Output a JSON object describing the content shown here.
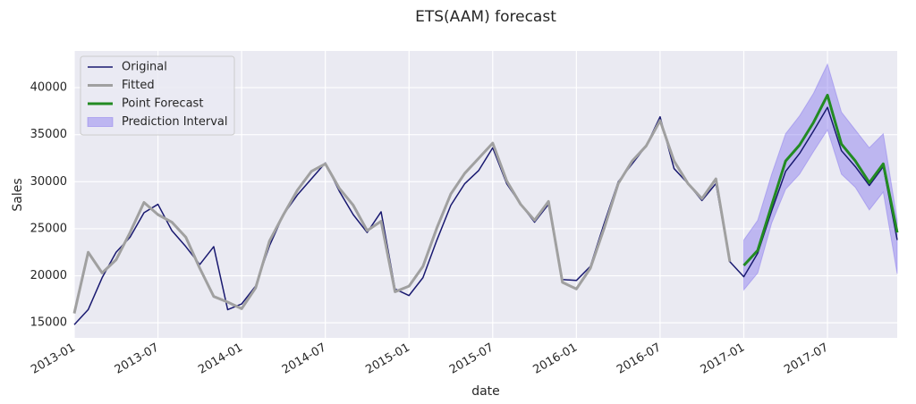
{
  "chart_data": {
    "type": "line",
    "title": "ETS(AAM) forecast",
    "x_label": "date",
    "y_label": "Sales",
    "x": [
      "2013-01",
      "2013-02",
      "2013-03",
      "2013-04",
      "2013-05",
      "2013-06",
      "2013-07",
      "2013-08",
      "2013-09",
      "2013-10",
      "2013-11",
      "2013-12",
      "2014-01",
      "2014-02",
      "2014-03",
      "2014-04",
      "2014-05",
      "2014-06",
      "2014-07",
      "2014-08",
      "2014-09",
      "2014-10",
      "2014-11",
      "2014-12",
      "2015-01",
      "2015-02",
      "2015-03",
      "2015-04",
      "2015-05",
      "2015-06",
      "2015-07",
      "2015-08",
      "2015-09",
      "2015-10",
      "2015-11",
      "2015-12",
      "2016-01",
      "2016-02",
      "2016-03",
      "2016-04",
      "2016-05",
      "2016-06",
      "2016-07",
      "2016-08",
      "2016-09",
      "2016-10",
      "2016-11",
      "2016-12",
      "2017-01",
      "2017-02",
      "2017-03",
      "2017-04",
      "2017-05",
      "2017-06",
      "2017-07",
      "2017-08",
      "2017-09",
      "2017-10",
      "2017-11",
      "2017-12"
    ],
    "xticks": [
      "2013-01",
      "2013-07",
      "2014-01",
      "2014-07",
      "2015-01",
      "2015-07",
      "2016-01",
      "2016-07",
      "2017-01",
      "2017-07"
    ],
    "ylim": [
      13400,
      43900
    ],
    "yticks": [
      15000,
      20000,
      25000,
      30000,
      35000,
      40000
    ],
    "grid": true,
    "legend": "upper left",
    "interval": {
      "name": "Prediction Interval",
      "color": "#7b68ee",
      "lower": [
        null,
        null,
        null,
        null,
        null,
        null,
        null,
        null,
        null,
        null,
        null,
        null,
        null,
        null,
        null,
        null,
        null,
        null,
        null,
        null,
        null,
        null,
        null,
        null,
        null,
        null,
        null,
        null,
        null,
        null,
        null,
        null,
        null,
        null,
        null,
        null,
        null,
        null,
        null,
        null,
        null,
        null,
        null,
        null,
        null,
        null,
        null,
        null,
        18500,
        20300,
        25600,
        29200,
        30800,
        33200,
        35500,
        30800,
        29400,
        27000,
        28900,
        20200
      ],
      "upper": [
        null,
        null,
        null,
        null,
        null,
        null,
        null,
        null,
        null,
        null,
        null,
        null,
        null,
        null,
        null,
        null,
        null,
        null,
        null,
        null,
        null,
        null,
        null,
        null,
        null,
        null,
        null,
        null,
        null,
        null,
        null,
        null,
        null,
        null,
        null,
        null,
        null,
        null,
        null,
        null,
        null,
        null,
        null,
        null,
        null,
        null,
        null,
        null,
        23800,
        25900,
        30800,
        35100,
        37000,
        39400,
        42500,
        37400,
        35500,
        33600,
        35100,
        25900
      ]
    },
    "series": [
      {
        "name": "Original",
        "color": "#191970",
        "width": 1.5,
        "values": [
          14800,
          16400,
          19800,
          22500,
          24100,
          26700,
          27600,
          24800,
          23100,
          21200,
          23100,
          16400,
          17000,
          18900,
          23200,
          26500,
          28600,
          30300,
          32000,
          29000,
          26500,
          24600,
          26800,
          18600,
          17900,
          19800,
          23800,
          27500,
          29800,
          31200,
          33600,
          29800,
          27600,
          25700,
          27600,
          19600,
          19500,
          21000,
          25600,
          30000,
          31900,
          33800,
          36900,
          31400,
          29800,
          28000,
          29800,
          21500,
          19900,
          22400,
          26900,
          31100,
          33000,
          35400,
          37900,
          33300,
          31600,
          29600,
          31600,
          23800
        ]
      },
      {
        "name": "Fitted",
        "color": "#a0a0a0",
        "width": 3,
        "values": [
          16000,
          22500,
          20300,
          21700,
          24600,
          27800,
          26500,
          25700,
          24100,
          20800,
          17800,
          17200,
          16500,
          18700,
          23700,
          26500,
          29100,
          31100,
          31900,
          29300,
          27500,
          24800,
          25800,
          18300,
          18900,
          21000,
          25100,
          28700,
          30900,
          32500,
          34100,
          30100,
          27600,
          25900,
          27900,
          19300,
          18600,
          20800,
          25100,
          29800,
          32200,
          33800,
          36500,
          32200,
          29800,
          28200,
          30300,
          21500,
          null,
          null,
          null,
          null,
          null,
          null,
          null,
          null,
          null,
          null,
          null,
          null
        ]
      },
      {
        "name": "Point Forecast",
        "color": "#228b22",
        "width": 3,
        "values": [
          null,
          null,
          null,
          null,
          null,
          null,
          null,
          null,
          null,
          null,
          null,
          null,
          null,
          null,
          null,
          null,
          null,
          null,
          null,
          null,
          null,
          null,
          null,
          null,
          null,
          null,
          null,
          null,
          null,
          null,
          null,
          null,
          null,
          null,
          null,
          null,
          null,
          null,
          null,
          null,
          null,
          null,
          null,
          null,
          null,
          null,
          null,
          null,
          21100,
          22700,
          27500,
          32200,
          33900,
          36300,
          39200,
          34000,
          32200,
          29900,
          31900,
          24600
        ]
      }
    ]
  }
}
